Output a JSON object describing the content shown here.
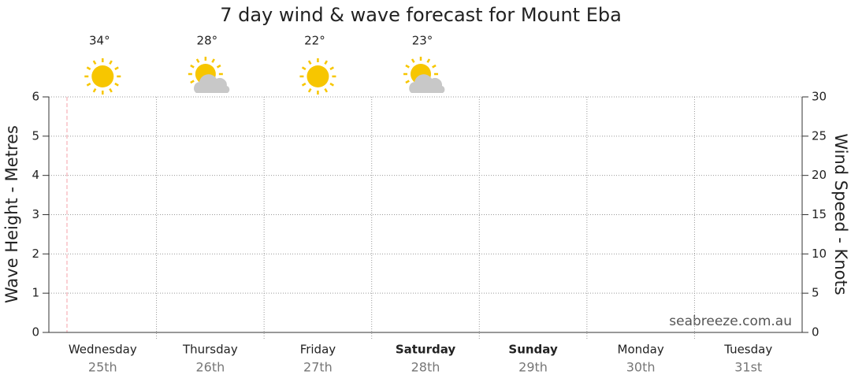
{
  "chart_data": {
    "type": "forecast",
    "title": "7 day wind & wave forecast for Mount Eba",
    "y_label": "Wave Height - Metres",
    "y2_label": "Wind Speed - Knots",
    "ylim": [
      0,
      6
    ],
    "yticks": [
      0,
      1,
      2,
      3,
      4,
      5,
      6
    ],
    "y2lim": [
      0,
      30
    ],
    "y2ticks": [
      0,
      5,
      10,
      15,
      20,
      25,
      30
    ],
    "grid": true,
    "watermark": "seabreeze.com.au",
    "days": [
      {
        "name": "Wednesday",
        "date": "25th",
        "temp": "34°",
        "icon": "sunny",
        "bold": false
      },
      {
        "name": "Thursday",
        "date": "26th",
        "temp": "28°",
        "icon": "partly-cloudy",
        "bold": false
      },
      {
        "name": "Friday",
        "date": "27th",
        "temp": "22°",
        "icon": "sunny",
        "bold": false
      },
      {
        "name": "Saturday",
        "date": "28th",
        "temp": "23°",
        "icon": "partly-cloudy",
        "bold": true
      },
      {
        "name": "Sunday",
        "date": "29th",
        "bold": true
      },
      {
        "name": "Monday",
        "date": "30th",
        "bold": false
      },
      {
        "name": "Tuesday",
        "date": "31st",
        "bold": false
      }
    ]
  }
}
